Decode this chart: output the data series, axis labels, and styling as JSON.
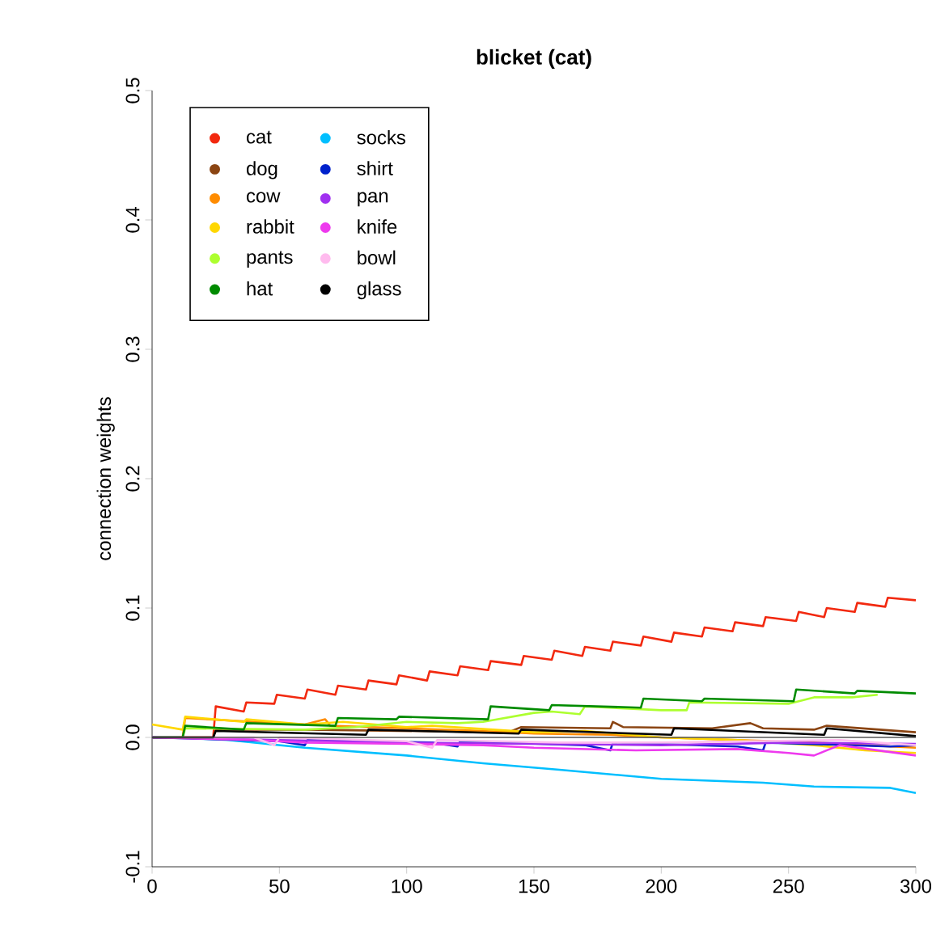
{
  "chart_data": {
    "type": "line",
    "title": "blicket (cat)",
    "ylabel": "connection weights",
    "xlim": [
      0,
      300
    ],
    "xticks": [
      0,
      50,
      100,
      150,
      200,
      250,
      300
    ],
    "ylim": [
      -0.1,
      0.5
    ],
    "yticks": [
      -0.1,
      {
        "value": 0,
        "label": "0.0"
      },
      0.1,
      0.2,
      0.3,
      0.4,
      0.5
    ],
    "legend": "top left",
    "ref_lines": [
      {
        "axis": "y",
        "value": 0,
        "color": "#555555"
      }
    ],
    "series": [
      {
        "name": "cat",
        "color": "#f2290f",
        "x": [
          0,
          24,
          25,
          36,
          37,
          48,
          49,
          60,
          61,
          72,
          73,
          84,
          85,
          96,
          97,
          108,
          109,
          120,
          121,
          132,
          133,
          145,
          146,
          157,
          158,
          169,
          170,
          180,
          181,
          192,
          193,
          204,
          205,
          216,
          217,
          228,
          229,
          240,
          241,
          253,
          254,
          264,
          265,
          276,
          277,
          288,
          289,
          300
        ],
        "values": [
          0,
          0,
          0.024,
          0.02,
          0.027,
          0.026,
          0.033,
          0.03,
          0.037,
          0.033,
          0.04,
          0.037,
          0.044,
          0.041,
          0.048,
          0.044,
          0.051,
          0.048,
          0.055,
          0.052,
          0.059,
          0.056,
          0.063,
          0.06,
          0.067,
          0.063,
          0.07,
          0.067,
          0.074,
          0.071,
          0.078,
          0.074,
          0.081,
          0.078,
          0.085,
          0.082,
          0.089,
          0.086,
          0.093,
          0.09,
          0.097,
          0.093,
          0.1,
          0.097,
          0.104,
          0.101,
          0.108,
          0.106
        ]
      },
      {
        "name": "dog",
        "color": "#8b4513",
        "x": [
          0,
          24,
          25,
          60,
          100,
          140,
          145,
          180,
          181,
          185,
          220,
          235,
          240,
          260,
          265,
          300
        ],
        "values": [
          0,
          0,
          0.006,
          0.006,
          0.005,
          0.004,
          0.008,
          0.007,
          0.012,
          0.008,
          0.007,
          0.011,
          0.007,
          0.006,
          0.009,
          0.004
        ]
      },
      {
        "name": "cow",
        "color": "#ff8c00",
        "x": [
          0,
          12,
          13,
          40,
          60,
          68,
          70,
          100,
          130,
          150,
          180,
          200,
          230,
          260,
          300
        ],
        "values": [
          0,
          0,
          0.015,
          0.012,
          0.01,
          0.014,
          0.009,
          0.007,
          0.005,
          0.003,
          0.002,
          0.0,
          -0.002,
          -0.004,
          -0.008
        ]
      },
      {
        "name": "rabbit",
        "color": "#ffd700",
        "x": [
          0,
          12,
          13,
          36,
          37,
          60,
          75,
          100,
          110,
          150,
          170,
          200,
          230,
          260,
          280,
          300
        ],
        "values": [
          0.01,
          0.006,
          0.016,
          0.012,
          0.014,
          0.01,
          0.012,
          0.008,
          0.009,
          0.004,
          0.005,
          0.0,
          -0.002,
          -0.006,
          -0.01,
          -0.012
        ]
      },
      {
        "name": "pants",
        "color": "#adff2f",
        "x": [
          0,
          12,
          13,
          60,
          80,
          100,
          120,
          130,
          150,
          157,
          168,
          170,
          200,
          210,
          211,
          250,
          260,
          275,
          285
        ],
        "values": [
          0,
          0,
          0.007,
          0.006,
          0.008,
          0.012,
          0.011,
          0.012,
          0.019,
          0.02,
          0.018,
          0.024,
          0.021,
          0.021,
          0.027,
          0.026,
          0.031,
          0.031,
          0.033
        ]
      },
      {
        "name": "hat",
        "color": "#008b00",
        "x": [
          0,
          12,
          13,
          36,
          37,
          72,
          73,
          96,
          97,
          132,
          133,
          156,
          157,
          192,
          193,
          216,
          217,
          252,
          253,
          276,
          277,
          300
        ],
        "values": [
          0,
          0,
          0.009,
          0.006,
          0.011,
          0.009,
          0.015,
          0.014,
          0.016,
          0.014,
          0.024,
          0.021,
          0.025,
          0.023,
          0.03,
          0.028,
          0.03,
          0.028,
          0.037,
          0.034,
          0.036,
          0.034
        ]
      },
      {
        "name": "socks",
        "color": "#00bfff",
        "x": [
          0,
          10,
          30,
          60,
          100,
          130,
          160,
          200,
          240,
          260,
          290,
          300
        ],
        "values": [
          0,
          0,
          -0.002,
          -0.008,
          -0.014,
          -0.02,
          -0.025,
          -0.032,
          -0.035,
          -0.038,
          -0.039,
          -0.043
        ]
      },
      {
        "name": "shirt",
        "color": "#0022cc",
        "x": [
          0,
          50,
          60,
          61,
          110,
          120,
          121,
          170,
          180,
          181,
          230,
          240,
          241,
          290,
          300
        ],
        "values": [
          0,
          -0.003,
          -0.006,
          -0.002,
          -0.004,
          -0.007,
          -0.003,
          -0.006,
          -0.01,
          -0.004,
          -0.007,
          -0.01,
          -0.004,
          -0.007,
          -0.006
        ]
      },
      {
        "name": "pan",
        "color": "#a030f0",
        "x": [
          0,
          50,
          100,
          150,
          200,
          250,
          300
        ],
        "values": [
          0,
          -0.002,
          -0.004,
          -0.005,
          -0.006,
          -0.004,
          -0.005
        ]
      },
      {
        "name": "knife",
        "color": "#ee3aee",
        "x": [
          0,
          40,
          60,
          100,
          130,
          150,
          190,
          230,
          250,
          260,
          270,
          300
        ],
        "values": [
          0,
          -0.002,
          -0.004,
          -0.005,
          -0.006,
          -0.008,
          -0.01,
          -0.009,
          -0.012,
          -0.014,
          -0.006,
          -0.014
        ]
      },
      {
        "name": "bowl",
        "color": "#ffbbee",
        "x": [
          0,
          40,
          48,
          50,
          100,
          110,
          112,
          160,
          200,
          270,
          300
        ],
        "values": [
          0,
          0,
          -0.006,
          0,
          -0.003,
          -0.008,
          -0.002,
          -0.004,
          -0.004,
          -0.002,
          -0.006
        ]
      },
      {
        "name": "glass",
        "color": "#000000",
        "x": [
          0,
          24,
          25,
          84,
          85,
          144,
          145,
          204,
          205,
          264,
          265,
          300
        ],
        "values": [
          0,
          0,
          0.005,
          0.002,
          0.006,
          0.003,
          0.006,
          0.002,
          0.007,
          0.002,
          0.007,
          0.001
        ]
      }
    ]
  }
}
